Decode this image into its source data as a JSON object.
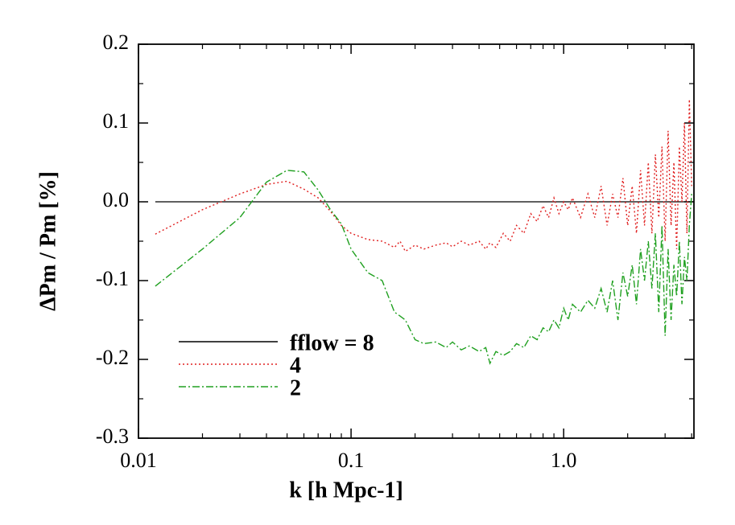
{
  "chart_data": {
    "type": "line",
    "xlabel": "k  [h Mpc-1]",
    "ylabel": "ΔPm / Pm  [%]",
    "xscale": "log",
    "xlim": [
      0.01,
      4.1
    ],
    "xticks": [
      0.01,
      0.1,
      {
        "value": 1,
        "label": "1.0"
      }
    ],
    "xminorticks": [
      0.02,
      0.03,
      0.04,
      0.05,
      0.06,
      0.07,
      0.08,
      0.09,
      0.2,
      0.3,
      0.4,
      0.5,
      0.6,
      0.7,
      0.8,
      0.9,
      2,
      3,
      4
    ],
    "ylim": [
      -0.3,
      0.2
    ],
    "yticks": [
      -0.3,
      -0.2,
      -0.1,
      {
        "value": 0,
        "label": "0.0"
      },
      0.1,
      0.2
    ],
    "yminorticks": [
      -0.25,
      -0.15,
      -0.05,
      0.05,
      0.15
    ],
    "legend": "lower left",
    "series": [
      {
        "name": "fflow = 8",
        "color": "#000000",
        "linestyle": "solid",
        "x": [
          0.012,
          4.1
        ],
        "values": [
          0,
          0
        ]
      },
      {
        "name": "4",
        "color": "#e02020",
        "linestyle": "dotted",
        "x": [
          0.012,
          0.02,
          0.03,
          0.04,
          0.05,
          0.06,
          0.07,
          0.08,
          0.09,
          0.1,
          0.12,
          0.14,
          0.16,
          0.17,
          0.18,
          0.2,
          0.22,
          0.25,
          0.28,
          0.3,
          0.33,
          0.36,
          0.4,
          0.43,
          0.45,
          0.48,
          0.52,
          0.56,
          0.6,
          0.65,
          0.7,
          0.75,
          0.8,
          0.85,
          0.9,
          0.95,
          1.0,
          1.05,
          1.1,
          1.2,
          1.3,
          1.4,
          1.5,
          1.6,
          1.7,
          1.8,
          1.9,
          2.0,
          2.1,
          2.2,
          2.3,
          2.4,
          2.5,
          2.6,
          2.7,
          2.8,
          2.9,
          3.0,
          3.1,
          3.2,
          3.3,
          3.4,
          3.5,
          3.6,
          3.7,
          3.8,
          3.9,
          4.0
        ],
        "values": [
          -0.041,
          -0.01,
          0.01,
          0.022,
          0.026,
          0.016,
          0.005,
          -0.012,
          -0.03,
          -0.04,
          -0.048,
          -0.05,
          -0.058,
          -0.05,
          -0.063,
          -0.055,
          -0.06,
          -0.055,
          -0.052,
          -0.057,
          -0.05,
          -0.055,
          -0.05,
          -0.06,
          -0.052,
          -0.058,
          -0.04,
          -0.05,
          -0.03,
          -0.04,
          -0.015,
          -0.025,
          -0.005,
          -0.02,
          0.005,
          -0.015,
          0.0,
          -0.01,
          0.005,
          -0.02,
          0.01,
          -0.02,
          0.02,
          -0.03,
          0.01,
          -0.02,
          0.03,
          -0.03,
          0.02,
          -0.04,
          0.04,
          -0.03,
          0.05,
          -0.04,
          0.06,
          -0.02,
          0.07,
          -0.05,
          0.09,
          -0.03,
          0.05,
          -0.06,
          0.07,
          0.0,
          0.1,
          -0.04,
          0.13,
          0.02
        ]
      },
      {
        "name": "2",
        "color": "#20a020",
        "linestyle": "dashdot",
        "x": [
          0.012,
          0.02,
          0.03,
          0.04,
          0.05,
          0.06,
          0.07,
          0.08,
          0.09,
          0.1,
          0.12,
          0.14,
          0.16,
          0.17,
          0.18,
          0.2,
          0.22,
          0.25,
          0.28,
          0.3,
          0.33,
          0.36,
          0.4,
          0.43,
          0.45,
          0.48,
          0.52,
          0.56,
          0.6,
          0.65,
          0.7,
          0.75,
          0.8,
          0.85,
          0.9,
          0.95,
          1.0,
          1.05,
          1.1,
          1.2,
          1.3,
          1.4,
          1.5,
          1.6,
          1.7,
          1.8,
          1.9,
          2.0,
          2.1,
          2.2,
          2.3,
          2.4,
          2.5,
          2.6,
          2.7,
          2.8,
          2.9,
          3.0,
          3.1,
          3.2,
          3.3,
          3.4,
          3.5,
          3.6,
          3.7,
          3.8,
          3.9,
          4.0
        ],
        "values": [
          -0.107,
          -0.06,
          -0.02,
          0.025,
          0.04,
          0.038,
          0.015,
          -0.01,
          -0.028,
          -0.06,
          -0.09,
          -0.1,
          -0.14,
          -0.145,
          -0.15,
          -0.175,
          -0.18,
          -0.178,
          -0.185,
          -0.178,
          -0.188,
          -0.183,
          -0.19,
          -0.185,
          -0.205,
          -0.19,
          -0.195,
          -0.19,
          -0.18,
          -0.185,
          -0.17,
          -0.175,
          -0.16,
          -0.165,
          -0.15,
          -0.16,
          -0.135,
          -0.15,
          -0.13,
          -0.14,
          -0.125,
          -0.135,
          -0.11,
          -0.14,
          -0.1,
          -0.15,
          -0.09,
          -0.12,
          -0.08,
          -0.13,
          -0.06,
          -0.1,
          -0.05,
          -0.11,
          -0.04,
          -0.14,
          -0.03,
          -0.17,
          -0.06,
          -0.15,
          -0.08,
          -0.12,
          -0.05,
          -0.13,
          -0.07,
          -0.1,
          -0.03,
          0.01
        ]
      }
    ]
  }
}
